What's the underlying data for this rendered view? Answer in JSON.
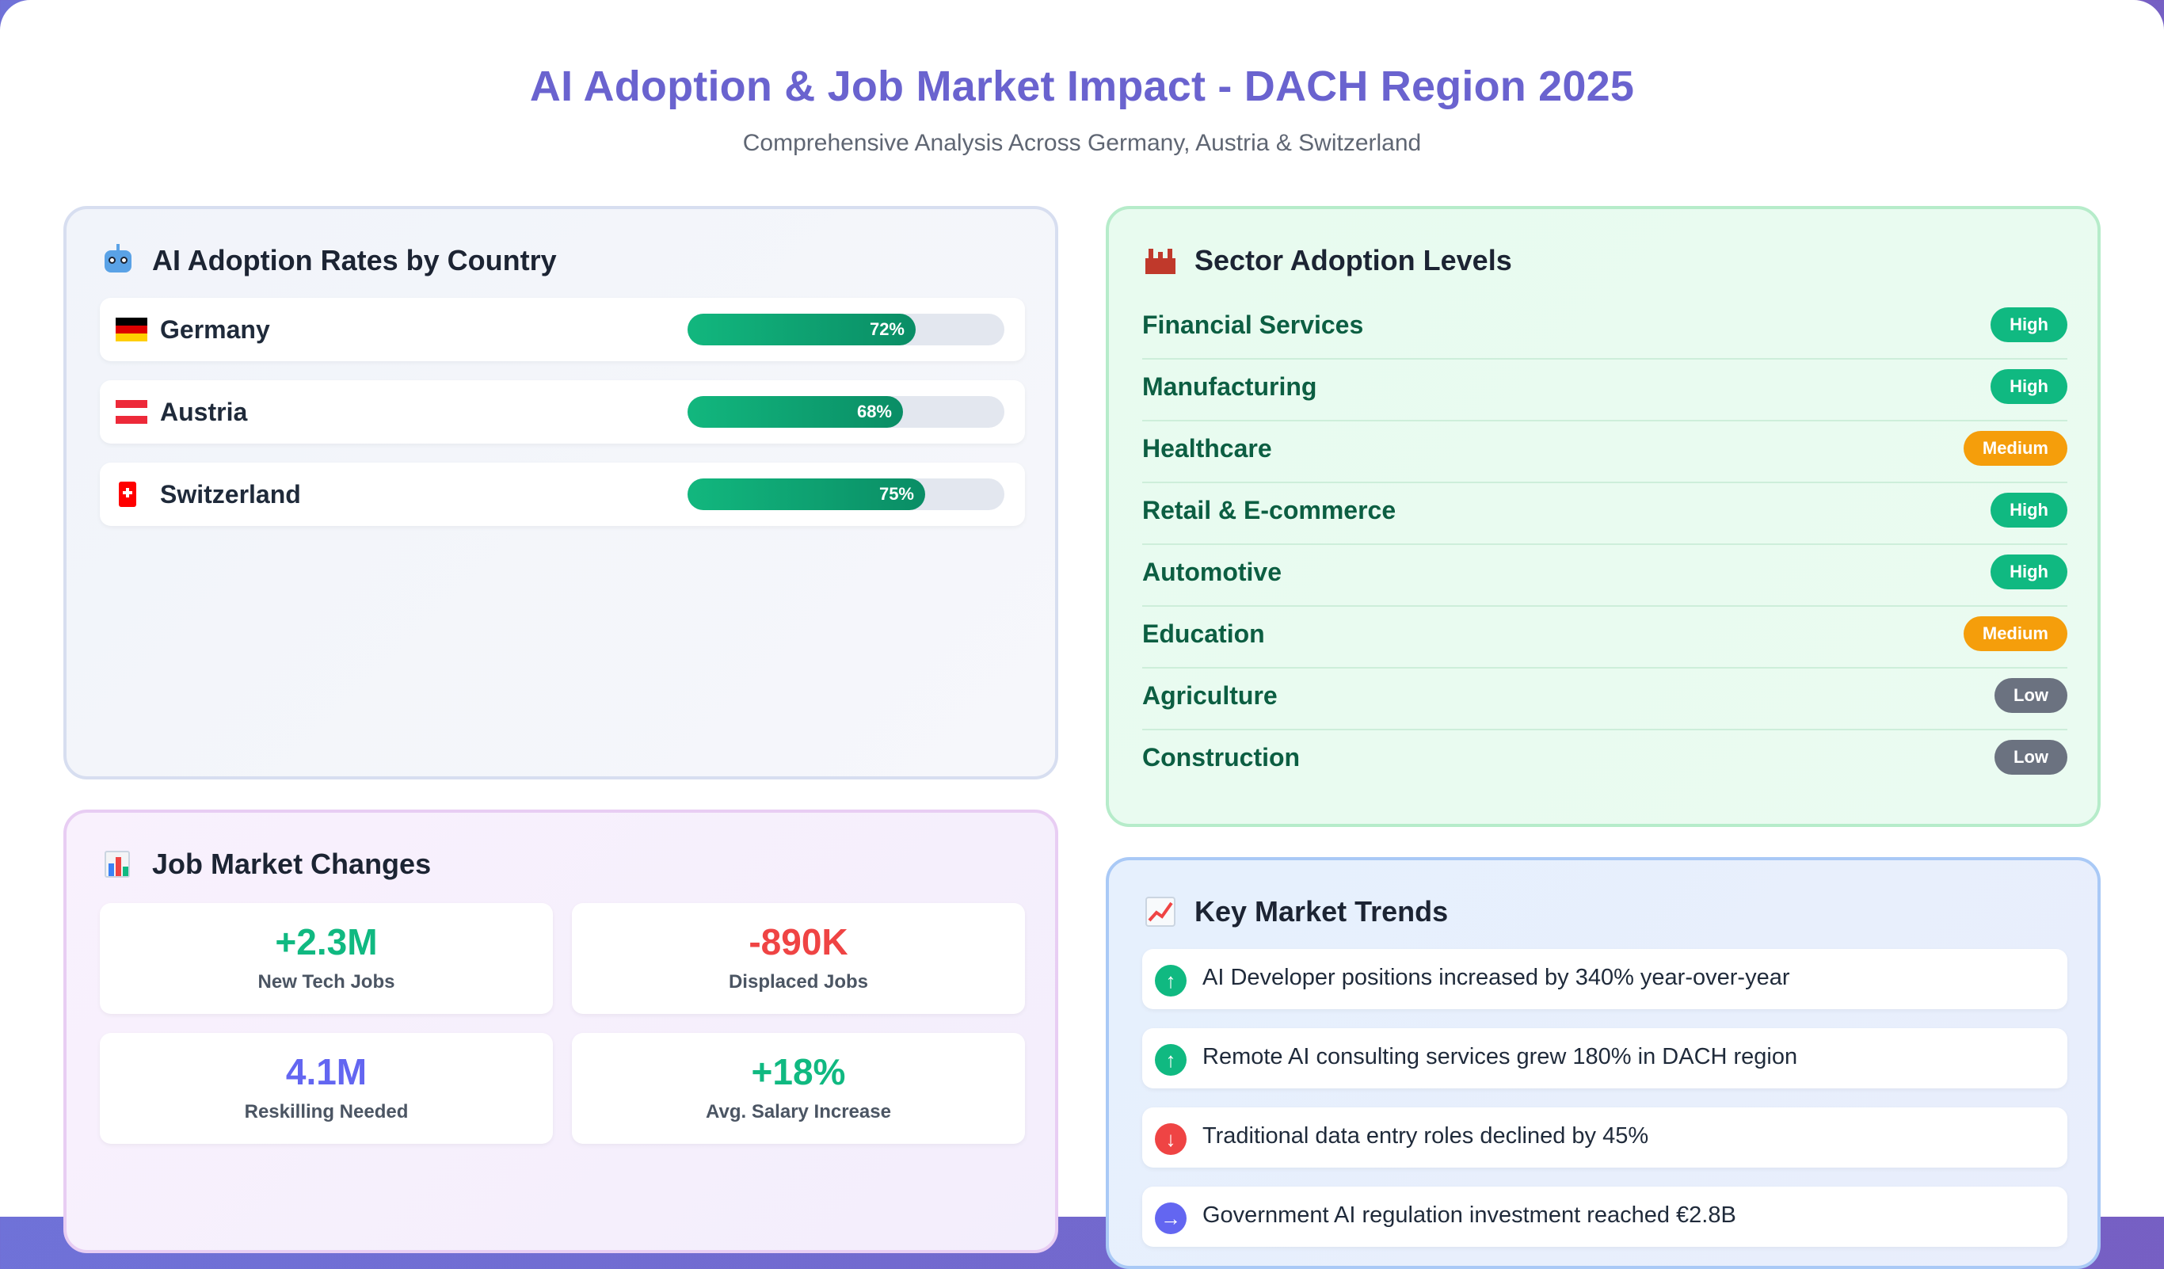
{
  "header": {
    "title": "AI Adoption & Job Market Impact - DACH Region 2025",
    "subtitle": "Comprehensive Analysis Across Germany, Austria & Switzerland"
  },
  "adoption": {
    "title": "AI Adoption Rates by Country",
    "icon": "robot-icon",
    "countries": [
      {
        "name": "Germany",
        "label": "72%",
        "value": 72,
        "flag": "germany-flag-icon"
      },
      {
        "name": "Austria",
        "label": "68%",
        "value": 68,
        "flag": "austria-flag-icon"
      },
      {
        "name": "Switzerland",
        "label": "75%",
        "value": 75,
        "flag": "switzerland-flag-icon"
      }
    ]
  },
  "sectors": {
    "title": "Sector Adoption Levels",
    "icon": "factory-icon",
    "items": [
      {
        "name": "Financial Services",
        "level": "High"
      },
      {
        "name": "Manufacturing",
        "level": "High"
      },
      {
        "name": "Healthcare",
        "level": "Medium"
      },
      {
        "name": "Retail & E-commerce",
        "level": "High"
      },
      {
        "name": "Automotive",
        "level": "High"
      },
      {
        "name": "Education",
        "level": "Medium"
      },
      {
        "name": "Agriculture",
        "level": "Low"
      },
      {
        "name": "Construction",
        "level": "Low"
      }
    ],
    "colors": {
      "High": "#10b981",
      "Medium": "#f59e0b",
      "Low": "#6b7280"
    }
  },
  "jobs": {
    "title": "Job Market Changes",
    "icon": "bar-chart-icon",
    "stats": [
      {
        "value": "+2.3M",
        "label": "New Tech Jobs",
        "color": "#10b981"
      },
      {
        "value": "-890K",
        "label": "Displaced Jobs",
        "color": "#ef4444"
      },
      {
        "value": "4.1M",
        "label": "Reskilling Needed",
        "color": "#6366f1"
      },
      {
        "value": "+18%",
        "label": "Avg. Salary Increase",
        "color": "#10b981"
      }
    ]
  },
  "trends": {
    "title": "Key Market Trends",
    "icon": "trend-up-icon",
    "items": [
      {
        "text": "AI Developer positions increased by 340% year-over-year",
        "direction": "up",
        "glyph": "↑",
        "color": "#10b981"
      },
      {
        "text": "Remote AI consulting services grew 180% in DACH region",
        "direction": "up",
        "glyph": "↑",
        "color": "#10b981"
      },
      {
        "text": "Traditional data entry roles declined by 45%",
        "direction": "down",
        "glyph": "↓",
        "color": "#ef4444"
      },
      {
        "text": "Government AI regulation investment reached €2.8B",
        "direction": "neutral",
        "glyph": "→",
        "color": "#6366f1"
      }
    ]
  }
}
